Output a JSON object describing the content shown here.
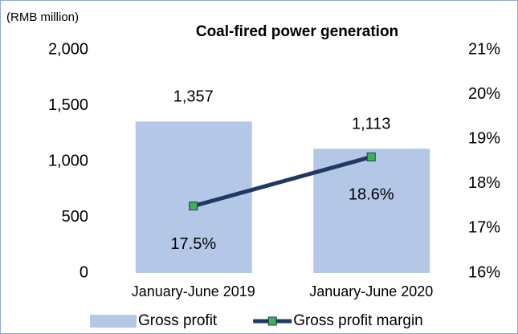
{
  "chart_data": {
    "type": "bar",
    "title": "Coal-fired power generation",
    "unit_label": "(RMB million)",
    "categories": [
      "January-June 2019",
      "January-June 2020"
    ],
    "series": [
      {
        "name": "Gross profit",
        "type": "bar",
        "color": "#b4c7e7",
        "values": [
          1357,
          1113
        ],
        "value_labels": [
          "1,357",
          "1,113"
        ]
      },
      {
        "name": "Gross profit margin",
        "type": "line",
        "axis": "y2",
        "color": "#1f3864",
        "marker_color": "#3cb44b",
        "values": [
          17.5,
          18.6
        ],
        "value_labels": [
          "17.5%",
          "18.6%"
        ]
      }
    ],
    "ylim": [
      0,
      2000
    ],
    "yticks": [
      0,
      500,
      {
        "value": 1000,
        "label": "1,000"
      },
      {
        "value": 1500,
        "label": "1,500"
      },
      {
        "value": 2000,
        "label": "2,000"
      }
    ],
    "y2lim": [
      16,
      21
    ],
    "y2ticks": [
      {
        "value": 16,
        "label": "16%"
      },
      {
        "value": 17,
        "label": "17%"
      },
      {
        "value": 18,
        "label": "18%"
      },
      {
        "value": 19,
        "label": "19%"
      },
      {
        "value": 20,
        "label": "20%"
      },
      {
        "value": 21,
        "label": "21%"
      }
    ],
    "legend": "bottom"
  }
}
